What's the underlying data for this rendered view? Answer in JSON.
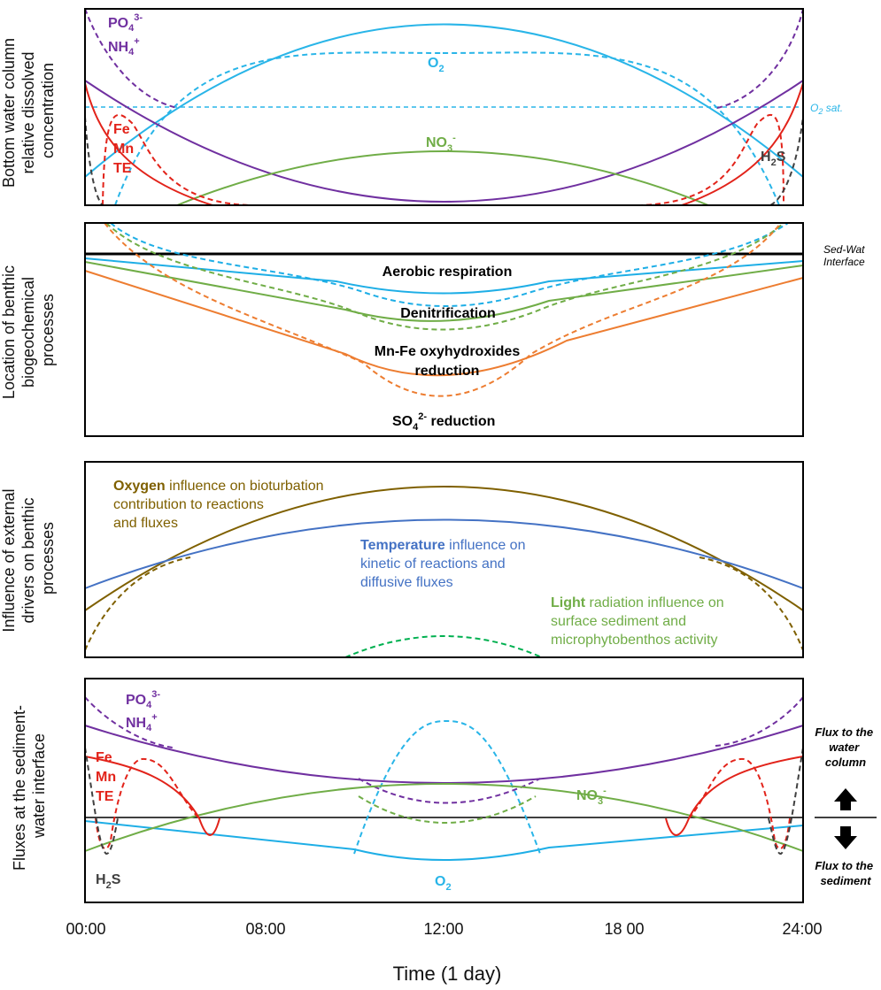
{
  "colors": {
    "purple": "#7030a0",
    "cyan": "#29b5e8",
    "sky": "#1eaee6",
    "green": "#70ad47",
    "red": "#e2231a",
    "orange": "#ed7d31",
    "grey": "#404040",
    "brown": "#7f6000",
    "blue": "#4472c4",
    "lightgreen": "#00b050",
    "black": "#000000"
  },
  "panel1": {
    "ylabel": [
      "Bottom water column",
      "relative dissolved",
      "concentration"
    ],
    "labels": {
      "po4": "PO",
      "po4_sub": "4",
      "po4_sup": "3-",
      "nh4": "NH",
      "nh4_sub": "4",
      "nh4_sup": "+",
      "o2": "O",
      "o2_sub": "2",
      "o2sat": "O",
      "o2sat_sub": "2",
      "o2sat_tail": " sat.",
      "no3": "NO",
      "no3_sub": "3",
      "no3_sup": "-",
      "fe": "Fe",
      "mn": "Mn",
      "te": "TE",
      "h2s_h": "H",
      "h2s_sub": "2",
      "h2s_s": "S"
    }
  },
  "panel2": {
    "ylabel": [
      "Location of benthic",
      "biogeochemical",
      "processes"
    ],
    "interface": [
      "Sed-Wat",
      "Interface"
    ],
    "aerobic": "Aerobic respiration",
    "denit": "Denitrification",
    "mnfe1": "Mn-Fe oxyhydroxides",
    "mnfe2": "reduction",
    "so4": "SO",
    "so4_sub": "4",
    "so4_sup": "2-",
    "so4_tail": " reduction"
  },
  "panel3": {
    "ylabel": [
      "Influence of external",
      "drivers on benthic",
      "processes"
    ],
    "oxygen_bold": "Oxygen",
    "oxygen_rest": " influence on bioturbation",
    "oxygen_l2": "contribution to reactions",
    "oxygen_l3": "and fluxes",
    "temp_bold": "Temperature",
    "temp_rest": " influence on",
    "temp_l2": "kinetic of reactions and",
    "temp_l3": "diffusive fluxes",
    "light_bold": "Light",
    "light_rest": " radiation influence on",
    "light_l2": "surface sediment and",
    "light_l3": "microphytobenthos activity"
  },
  "panel4": {
    "ylabel": [
      "Fluxes at the sediment-",
      "water interface"
    ],
    "flux_up": [
      "Flux to the",
      "water",
      "column"
    ],
    "flux_down": [
      "Flux to the",
      "sediment"
    ]
  },
  "xaxis": {
    "ticks": [
      "00:00",
      "08:00",
      "12:00",
      "18 00",
      "24:00"
    ],
    "title": "Time (1 day)"
  }
}
